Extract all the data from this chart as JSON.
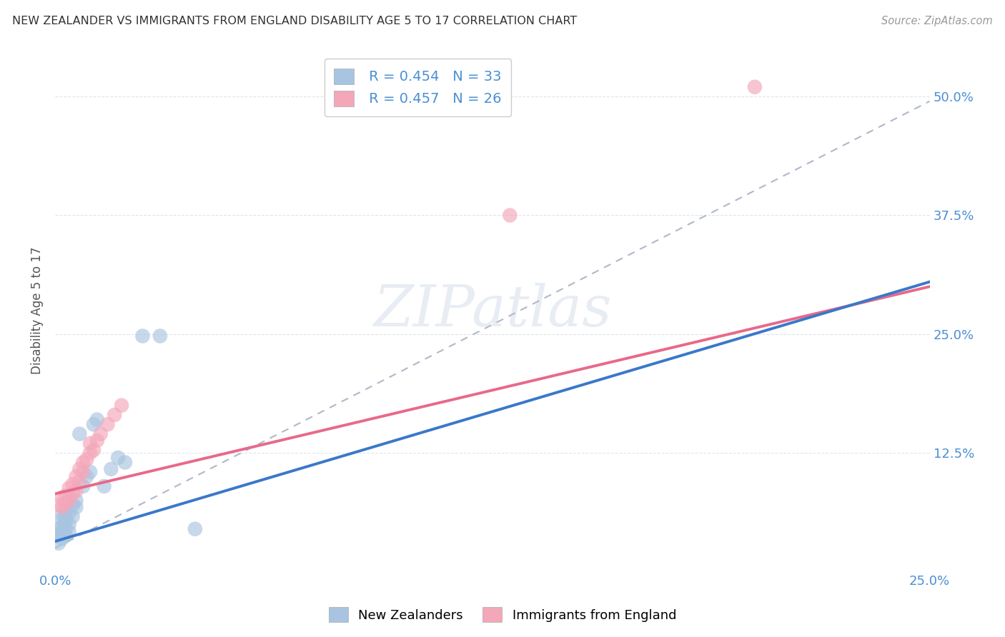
{
  "title": "NEW ZEALANDER VS IMMIGRANTS FROM ENGLAND DISABILITY AGE 5 TO 17 CORRELATION CHART",
  "source": "Source: ZipAtlas.com",
  "ylabel": "Disability Age 5 to 17",
  "xlim": [
    0.0,
    0.25
  ],
  "ylim": [
    0.0,
    0.55
  ],
  "x_ticks": [
    0.0,
    0.05,
    0.1,
    0.15,
    0.2,
    0.25
  ],
  "x_tick_labels": [
    "0.0%",
    "",
    "",
    "",
    "",
    "25.0%"
  ],
  "y_ticks": [
    0.0,
    0.125,
    0.25,
    0.375,
    0.5
  ],
  "y_tick_labels": [
    "",
    "12.5%",
    "25.0%",
    "37.5%",
    "50.0%"
  ],
  "nz_color": "#a8c4e0",
  "eng_color": "#f4a7b9",
  "nz_line_color": "#3a78c9",
  "eng_line_color": "#e8698a",
  "trend_line_color": "#b0b8c8",
  "legend_R_nz": "R = 0.454",
  "legend_N_nz": "N = 33",
  "legend_R_eng": "R = 0.457",
  "legend_N_eng": "N = 26",
  "nz_x": [
    0.001,
    0.001,
    0.001,
    0.002,
    0.002,
    0.002,
    0.002,
    0.002,
    0.003,
    0.003,
    0.003,
    0.003,
    0.003,
    0.004,
    0.004,
    0.004,
    0.005,
    0.005,
    0.006,
    0.006,
    0.007,
    0.008,
    0.009,
    0.01,
    0.011,
    0.012,
    0.014,
    0.016,
    0.018,
    0.02,
    0.025,
    0.03,
    0.04
  ],
  "nz_y": [
    0.03,
    0.038,
    0.045,
    0.035,
    0.042,
    0.048,
    0.055,
    0.06,
    0.038,
    0.045,
    0.052,
    0.058,
    0.065,
    0.042,
    0.05,
    0.062,
    0.058,
    0.07,
    0.068,
    0.075,
    0.145,
    0.09,
    0.1,
    0.105,
    0.155,
    0.16,
    0.09,
    0.108,
    0.12,
    0.115,
    0.248,
    0.248,
    0.045
  ],
  "eng_x": [
    0.001,
    0.002,
    0.002,
    0.003,
    0.003,
    0.004,
    0.004,
    0.005,
    0.005,
    0.006,
    0.006,
    0.007,
    0.007,
    0.008,
    0.008,
    0.009,
    0.01,
    0.01,
    0.011,
    0.012,
    0.013,
    0.015,
    0.017,
    0.019,
    0.13,
    0.2
  ],
  "eng_y": [
    0.07,
    0.068,
    0.078,
    0.072,
    0.08,
    0.075,
    0.088,
    0.082,
    0.092,
    0.085,
    0.1,
    0.095,
    0.108,
    0.105,
    0.115,
    0.118,
    0.125,
    0.135,
    0.128,
    0.138,
    0.145,
    0.155,
    0.165,
    0.175,
    0.375,
    0.51
  ],
  "nz_line_x0": 0.0,
  "nz_line_y0": 0.032,
  "nz_line_x1": 0.25,
  "nz_line_y1": 0.305,
  "eng_line_x0": 0.0,
  "eng_line_y0": 0.082,
  "eng_line_x1": 0.25,
  "eng_line_y1": 0.3,
  "dash_line_x0": 0.0,
  "dash_line_y0": 0.025,
  "dash_line_x1": 0.25,
  "dash_line_y1": 0.495,
  "watermark_text": "ZIPatlas",
  "background_color": "#ffffff",
  "grid_color": "#dde4ed"
}
